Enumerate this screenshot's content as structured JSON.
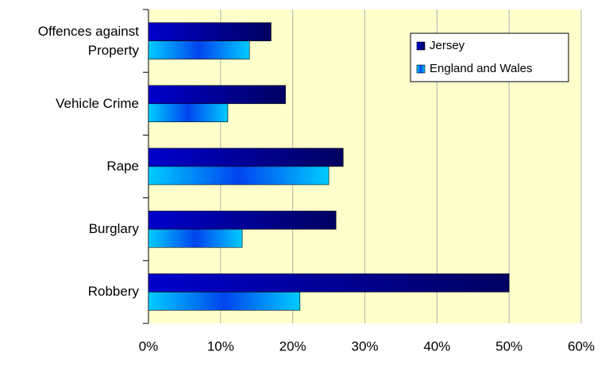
{
  "chart_data": {
    "type": "hbar",
    "categories": [
      "Offences against Property",
      "Vehicle Crime",
      "Rape",
      "Burglary",
      "Robbery"
    ],
    "series": [
      {
        "name": "Jersey",
        "color": "#0000cc",
        "values": [
          17,
          19,
          27,
          26,
          50
        ]
      },
      {
        "name": "England and Wales",
        "color": "#00ccff",
        "values": [
          14,
          11,
          25,
          13,
          21
        ]
      }
    ],
    "xlim": [
      0,
      60
    ],
    "xticks": [
      {
        "value": 0,
        "label": "0%"
      },
      {
        "value": 10,
        "label": "10%"
      },
      {
        "value": 20,
        "label": "20%"
      },
      {
        "value": 30,
        "label": "30%"
      },
      {
        "value": 40,
        "label": "40%"
      },
      {
        "value": 50,
        "label": "50%"
      },
      {
        "value": 60,
        "label": "60%"
      }
    ],
    "grid": true,
    "legend": "top-right"
  }
}
